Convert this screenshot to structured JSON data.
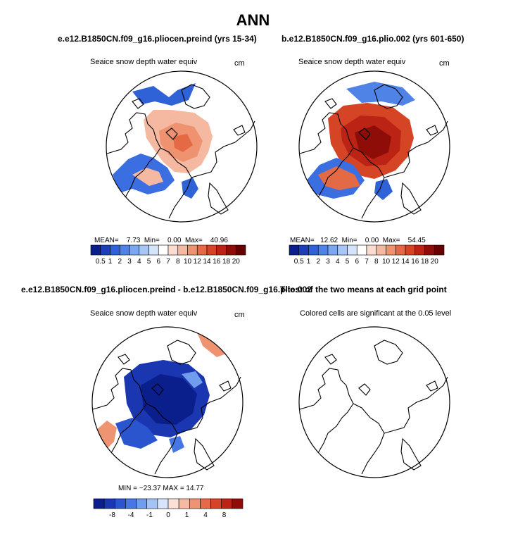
{
  "figure": {
    "title": "ANN"
  },
  "panels": [
    {
      "id": "preind",
      "title": "e.e12.B1850CN.f09_g16.pliocen.preind (yrs 15-34)",
      "subtitle": "Seaice snow depth water equiv",
      "units": "cm",
      "stats": {
        "mean_label": "MEAN=",
        "mean": "7.73",
        "min_label": "Min=",
        "min": "0.00",
        "max_label": "Max=",
        "max": "40.96"
      }
    },
    {
      "id": "plio",
      "title": "b.e12.B1850CN.f09_g16.plio.002 (yrs 601-650)",
      "subtitle": "Seaice snow depth water equiv",
      "units": "cm",
      "stats": {
        "mean_label": "MEAN=",
        "mean": "12.62",
        "min_label": "Min=",
        "min": "0.00",
        "max_label": "Max=",
        "max": "54.45"
      }
    },
    {
      "id": "diff",
      "title": "e.e12.B1850CN.f09_g16.pliocen.preind - b.e12.B1850CN.f09_g16.plio.002",
      "subtitle": "Seaice snow depth water equiv",
      "units": "cm",
      "stats_text": "MIN = −23.37  MAX = 14.77"
    },
    {
      "id": "ttest",
      "title": "T-test of the two means at each grid point",
      "subtitle": "Colored cells are significant at the 0.05 level"
    }
  ],
  "chart_data": [
    {
      "type": "heatmap",
      "title": "Seaice snow depth water equiv (pliocen.preind)",
      "units": "cm",
      "projection": "north polar stereographic",
      "summary": {
        "mean": 7.73,
        "min": 0.0,
        "max": 40.96
      },
      "colorbar": {
        "tick_labels": [
          "0.5",
          "1",
          "2",
          "3",
          "4",
          "5",
          "6",
          "7",
          "8",
          "10",
          "12",
          "14",
          "16",
          "18",
          "20"
        ],
        "colors": [
          "#0a1e8c",
          "#1c3fb8",
          "#2f62d6",
          "#4f84e6",
          "#7aa7f0",
          "#a7c6f6",
          "#d5e4fb",
          "#ffffff",
          "#fbdcd0",
          "#f5b8a0",
          "#ee9270",
          "#e46a45",
          "#d64426",
          "#bb2414",
          "#8f0d09",
          "#660000"
        ]
      }
    },
    {
      "type": "heatmap",
      "title": "Seaice snow depth water equiv (plio.002)",
      "units": "cm",
      "projection": "north polar stereographic",
      "summary": {
        "mean": 12.62,
        "min": 0.0,
        "max": 54.45
      },
      "colorbar": {
        "tick_labels": [
          "0.5",
          "1",
          "2",
          "3",
          "4",
          "5",
          "6",
          "7",
          "8",
          "10",
          "12",
          "14",
          "16",
          "18",
          "20"
        ],
        "colors": [
          "#0a1e8c",
          "#1c3fb8",
          "#2f62d6",
          "#4f84e6",
          "#7aa7f0",
          "#a7c6f6",
          "#d5e4fb",
          "#ffffff",
          "#fbdcd0",
          "#f5b8a0",
          "#ee9270",
          "#e46a45",
          "#d64426",
          "#bb2414",
          "#8f0d09",
          "#660000"
        ]
      }
    },
    {
      "type": "heatmap",
      "title": "Seaice snow depth water equiv (difference)",
      "units": "cm",
      "projection": "north polar stereographic",
      "summary": {
        "min": -23.37,
        "max": 14.77
      },
      "colorbar": {
        "tick_labels": [
          "-8",
          "-4",
          "-1",
          "0",
          "1",
          "4",
          "8"
        ],
        "colors": [
          "#0a1e8c",
          "#1a36b0",
          "#2a55cf",
          "#4777e2",
          "#709ded",
          "#a4c3f5",
          "#d6e5fb",
          "#fbe0d6",
          "#f6baa2",
          "#ef9472",
          "#e56b46",
          "#d64427",
          "#bb2414",
          "#8f0d09"
        ]
      }
    },
    {
      "type": "heatmap",
      "title": "T-test of the two means at each grid point",
      "note": "Colored cells are significant at the 0.05 level",
      "projection": "north polar stereographic"
    }
  ]
}
